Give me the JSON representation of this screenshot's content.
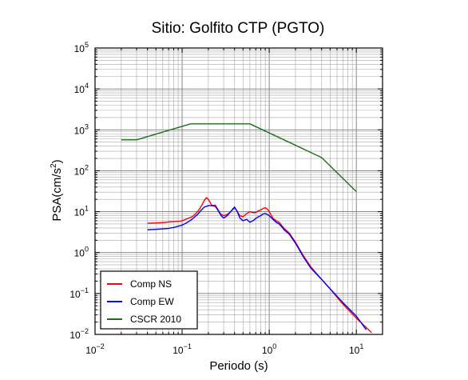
{
  "chart_data": {
    "type": "line",
    "title": "Sitio: Golfito CTP (PGTO)",
    "xlabel": "Periodo (s)",
    "ylabel": "PSA(cm/s2)",
    "xscale": "log",
    "yscale": "log",
    "xlim": [
      0.01,
      20
    ],
    "ylim": [
      0.01,
      100000
    ],
    "x_ticks": [
      {
        "value": 0.01,
        "base": "10",
        "exp": "−2"
      },
      {
        "value": 0.1,
        "base": "10",
        "exp": "−1"
      },
      {
        "value": 1,
        "base": "10",
        "exp": "0"
      },
      {
        "value": 10,
        "base": "10",
        "exp": "1"
      }
    ],
    "y_ticks": [
      {
        "value": 0.01,
        "base": "10",
        "exp": "−2"
      },
      {
        "value": 0.1,
        "base": "10",
        "exp": "−1"
      },
      {
        "value": 1,
        "base": "10",
        "exp": "0"
      },
      {
        "value": 10,
        "base": "10",
        "exp": "1"
      },
      {
        "value": 100,
        "base": "10",
        "exp": "2"
      },
      {
        "value": 1000,
        "base": "10",
        "exp": "3"
      },
      {
        "value": 10000,
        "base": "10",
        "exp": "4"
      },
      {
        "value": 100000,
        "base": "10",
        "exp": "5"
      }
    ],
    "grid": true,
    "legend_position": "bottom-left",
    "series": [
      {
        "name": "Comp NS",
        "color": "#ff0000",
        "x": [
          0.04,
          0.05,
          0.06,
          0.07,
          0.08,
          0.09,
          0.1,
          0.11,
          0.12,
          0.13,
          0.14,
          0.15,
          0.16,
          0.17,
          0.18,
          0.19,
          0.2,
          0.22,
          0.24,
          0.26,
          0.28,
          0.3,
          0.33,
          0.36,
          0.4,
          0.43,
          0.46,
          0.5,
          0.55,
          0.6,
          0.65,
          0.7,
          0.75,
          0.8,
          0.85,
          0.9,
          0.95,
          1.0,
          1.1,
          1.2,
          1.3,
          1.4,
          1.5,
          1.7,
          2.0,
          2.5,
          3.0,
          4.0,
          5.0,
          7.0,
          10.0,
          15.0
        ],
        "y": [
          5.2,
          5.3,
          5.4,
          5.6,
          5.7,
          5.8,
          6.0,
          6.5,
          7.0,
          7.5,
          8.5,
          10.0,
          12.0,
          15.0,
          19.0,
          22.0,
          20.0,
          14.0,
          14.5,
          11.0,
          8.5,
          8.0,
          8.5,
          10.0,
          12.5,
          10.0,
          8.0,
          7.5,
          9.0,
          10.0,
          9.5,
          9.5,
          10.5,
          11.0,
          12.0,
          12.5,
          11.5,
          10.0,
          7.0,
          6.0,
          5.5,
          4.5,
          3.8,
          3.0,
          1.8,
          0.8,
          0.45,
          0.22,
          0.13,
          0.055,
          0.025,
          0.011
        ]
      },
      {
        "name": "Comp EW",
        "color": "#0000ff",
        "x": [
          0.04,
          0.05,
          0.06,
          0.07,
          0.08,
          0.09,
          0.1,
          0.11,
          0.12,
          0.13,
          0.14,
          0.15,
          0.16,
          0.17,
          0.18,
          0.19,
          0.2,
          0.22,
          0.24,
          0.26,
          0.28,
          0.3,
          0.33,
          0.36,
          0.4,
          0.43,
          0.46,
          0.5,
          0.55,
          0.6,
          0.65,
          0.7,
          0.75,
          0.8,
          0.85,
          0.9,
          0.95,
          1.0,
          1.1,
          1.2,
          1.3,
          1.4,
          1.5,
          1.7,
          2.0,
          2.5,
          3.0,
          4.0,
          5.0,
          7.0,
          10.0,
          13.0
        ],
        "y": [
          3.6,
          3.7,
          3.8,
          3.9,
          4.1,
          4.4,
          4.7,
          5.2,
          5.8,
          6.5,
          7.5,
          8.5,
          10.0,
          11.5,
          13.0,
          13.5,
          14.0,
          14.0,
          13.5,
          10.5,
          8.0,
          7.0,
          8.0,
          10.0,
          13.0,
          10.0,
          7.0,
          6.0,
          6.5,
          5.5,
          6.0,
          6.8,
          7.5,
          8.0,
          8.8,
          9.0,
          8.5,
          8.0,
          6.5,
          5.5,
          5.0,
          4.2,
          3.5,
          2.8,
          1.7,
          0.75,
          0.42,
          0.22,
          0.13,
          0.06,
          0.028,
          0.013
        ]
      },
      {
        "name": "CSCR 2010",
        "color": "#1e6e1e",
        "x": [
          0.02,
          0.03,
          0.125,
          0.6,
          4.0,
          10.0
        ],
        "y": [
          570,
          570,
          1400,
          1400,
          210,
          31
        ]
      }
    ]
  }
}
